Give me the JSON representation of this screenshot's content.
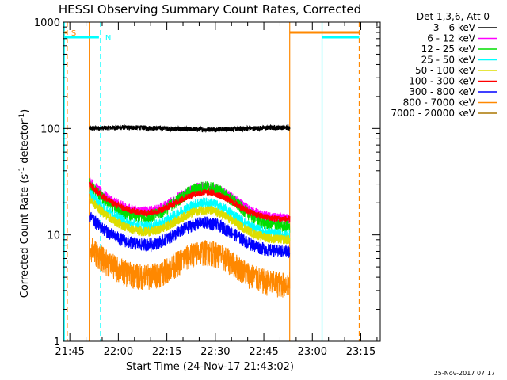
{
  "chart_data": {
    "type": "line",
    "title": "HESSI Observing Summary Count Rates, Corrected",
    "xlabel": "Start Time (24-Nov-17 21:43:02)",
    "ylabel_main": "Corrected Count Rate (s",
    "ylabel_sup1": "-1",
    "ylabel_mid": " detector",
    "ylabel_sup2": "-1",
    "ylabel_end": ")",
    "yscale": "log",
    "ylim": [
      1,
      1000
    ],
    "xlim_minutes": [
      0,
      98
    ],
    "y_ticks": [
      {
        "value": 1,
        "label": "1"
      },
      {
        "value": 10,
        "label": "10"
      },
      {
        "value": 100,
        "label": "100"
      },
      {
        "value": 1000,
        "label": "1000"
      }
    ],
    "x_ticks": [
      {
        "minute": 2,
        "label": "21:45"
      },
      {
        "minute": 17,
        "label": "22:00"
      },
      {
        "minute": 32,
        "label": "22:15"
      },
      {
        "minute": 47,
        "label": "22:30"
      },
      {
        "minute": 62,
        "label": "22:45"
      },
      {
        "minute": 77,
        "label": "23:00"
      },
      {
        "minute": 92,
        "label": "23:15"
      }
    ],
    "legend_title": "Det 1,3,6, Att 0",
    "legend_placement": "right",
    "data_start_minute": 8,
    "data_end_minute": 70,
    "series": [
      {
        "name": "3 - 6 keV",
        "color": "#000000",
        "start": 100,
        "min": 95,
        "peak": 100,
        "end": 100,
        "noise": 0.05
      },
      {
        "name": "6 - 12 keV",
        "color": "#ff00ff",
        "start": 32,
        "min": 14,
        "peak": 28,
        "end": 15,
        "noise": 0.12
      },
      {
        "name": "12 - 25 keV",
        "color": "#00dd00",
        "start": 30,
        "min": 12,
        "peak": 28,
        "end": 13,
        "noise": 0.14
      },
      {
        "name": "25 - 50 keV",
        "color": "#00ffff",
        "start": 25,
        "min": 10,
        "peak": 20,
        "end": 11,
        "noise": 0.12
      },
      {
        "name": "50 - 100 keV",
        "color": "#dddd00",
        "start": 22,
        "min": 9,
        "peak": 17,
        "end": 10,
        "noise": 0.1
      },
      {
        "name": "100 - 300 keV",
        "color": "#ff0000",
        "start": 30,
        "min": 14,
        "peak": 25,
        "end": 14,
        "noise": 0.07
      },
      {
        "name": "300 - 800 keV",
        "color": "#0000ff",
        "start": 15,
        "min": 7,
        "peak": 13,
        "end": 8,
        "noise": 0.14
      },
      {
        "name": "800 - 7000 keV",
        "color": "#ff8800",
        "start": 8,
        "min": 3.5,
        "peak": 7,
        "end": 4,
        "noise": 0.28
      },
      {
        "name": "7000 - 20000 keV",
        "color": "#aa7700",
        "start": 0,
        "min": 0,
        "peak": 0,
        "end": 0,
        "noise": 0
      }
    ],
    "flags": [
      {
        "label": "S",
        "color": "#ff8800",
        "x_start": 0.3,
        "x_end": 1.2
      },
      {
        "label": "N",
        "color": "#00ffff",
        "x_start": 0.3,
        "x_end": 11.0
      },
      {
        "label": "",
        "color": "#ff8800",
        "x_start": 70,
        "x_end": 91.5
      },
      {
        "label": "",
        "color": "#00ffff",
        "x_start": 80,
        "x_end": 91.5
      }
    ],
    "vlines": [
      {
        "minute": 0.3,
        "color": "#00ffff",
        "dashed": false
      },
      {
        "minute": 1.2,
        "color": "#ff8800",
        "dashed": true
      },
      {
        "minute": 8,
        "color": "#ff8800",
        "dashed": false
      },
      {
        "minute": 11.5,
        "color": "#00ffff",
        "dashed": true
      },
      {
        "minute": 70,
        "color": "#ff8800",
        "dashed": false
      },
      {
        "minute": 80,
        "color": "#00ffff",
        "dashed": false
      },
      {
        "minute": 91.5,
        "color": "#ff8800",
        "dashed": true
      }
    ]
  },
  "footer": {
    "timestamp": "25-Nov-2017 07:17"
  }
}
